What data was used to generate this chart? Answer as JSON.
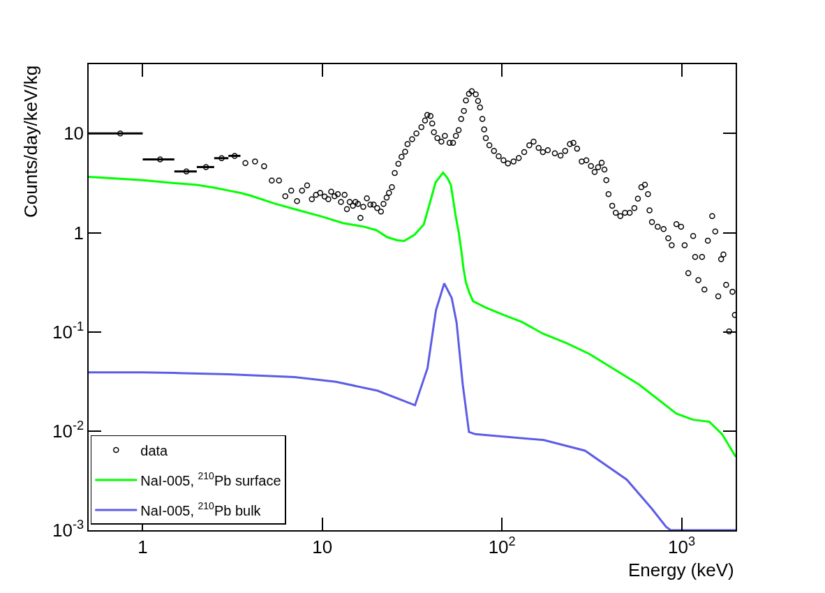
{
  "chart_data": {
    "type": "scatter",
    "xlabel": "Energy (keV)",
    "ylabel": "Counts/day/keV/kg",
    "log": "xy",
    "grid": false,
    "legend": "bottom left",
    "xlim": [
      0.5,
      2000
    ],
    "ylim": [
      0.001,
      50
    ],
    "xticks": [
      1,
      10,
      {
        "value": 100,
        "label": "10$^{2}$"
      },
      {
        "value": 1000,
        "label": "10$^{3}$"
      }
    ],
    "yticks": [
      {
        "value": 0.001,
        "label": "10$^{-3}$"
      },
      {
        "value": 0.01,
        "label": "10$^{-2}$"
      },
      {
        "value": 0.1,
        "label": "10$^{-1}$"
      },
      1,
      10
    ],
    "series": [
      {
        "name": "data",
        "marker": "circle",
        "color": "#000000",
        "x": [
          0.75,
          1.25,
          1.75,
          2.25,
          2.75,
          3.25,
          3.73,
          4.22,
          4.74,
          5.23,
          5.74,
          6.22,
          6.71,
          7.23,
          7.71,
          8.23,
          8.74,
          9.22,
          9.73,
          10.3,
          10.8,
          11.2,
          11.7,
          12.2,
          12.7,
          13.3,
          13.7,
          14.2,
          14.8,
          15.3,
          15.8,
          16.3,
          16.9,
          17.7,
          18.5,
          19.3,
          20.2,
          21.2,
          21.9,
          22.8,
          23.5,
          24.4,
          25.3,
          26.5,
          27.6,
          28.9,
          29.8,
          31.6,
          33.4,
          35.6,
          37.3,
          38.4,
          40.0,
          40.9,
          41.8,
          43.7,
          46.0,
          48.1,
          51.1,
          53.4,
          55.4,
          57.4,
          59.3,
          61.4,
          63.0,
          65.5,
          67.9,
          71.5,
          73.6,
          75.5,
          77.8,
          79.6,
          81.3,
          85.1,
          90.3,
          95.9,
          102,
          108,
          116,
          124,
          133,
          142,
          150,
          160,
          169,
          180,
          197,
          212,
          225,
          239,
          250,
          262,
          278,
          295,
          313,
          328,
          343,
          359,
          372,
          381,
          392,
          411,
          430,
          456,
          484,
          514,
          546,
          571,
          597,
          625,
          650,
          663,
          684,
          736,
          794,
          843,
          881,
          936,
          994,
          1040,
          1090,
          1160,
          1190,
          1240,
          1300,
          1340,
          1400,
          1480,
          1540,
          1600,
          1660,
          1710,
          1770,
          1840,
          1920,
          1980
        ],
        "values": [
          10,
          5.48,
          4.15,
          4.59,
          5.64,
          5.95,
          5.04,
          5.23,
          4.67,
          3.36,
          3.36,
          2.33,
          2.65,
          2.08,
          2.65,
          3.0,
          2.18,
          2.41,
          2.52,
          2.31,
          2.18,
          2.59,
          2.33,
          2.45,
          2.04,
          2.41,
          1.73,
          2.04,
          1.87,
          2.04,
          1.95,
          1.41,
          1.82,
          2.22,
          1.92,
          1.92,
          1.77,
          1.63,
          1.95,
          2.26,
          2.52,
          2.88,
          3.99,
          4.95,
          5.82,
          6.56,
          7.84,
          8.75,
          10,
          11.6,
          13.5,
          15.4,
          15.0,
          12.6,
          10.3,
          8.97,
          8.27,
          9.48,
          8.05,
          8.05,
          9.48,
          10.8,
          14.0,
          16.9,
          21.5,
          25.1,
          26.7,
          24.8,
          21.3,
          18.3,
          14.0,
          11.0,
          8.97,
          7.62,
          6.67,
          5.89,
          5.37,
          5.0,
          5.23,
          5.67,
          6.49,
          7.62,
          8.27,
          7.15,
          6.49,
          6.78,
          6.32,
          5.98,
          6.67,
          7.84,
          8.06,
          7.03,
          5.23,
          5.37,
          4.69,
          4.1,
          4.57,
          5.08,
          4.33,
          3.39,
          2.45,
          1.87,
          1.59,
          1.47,
          1.59,
          1.59,
          1.77,
          2.2,
          2.88,
          3.05,
          2.45,
          1.68,
          1.28,
          1.15,
          1.09,
          0.879,
          0.747,
          1.22,
          1.15,
          0.747,
          0.391,
          0.927,
          0.57,
          0.332,
          0.57,
          0.267,
          0.832,
          1.47,
          1.03,
          0.228,
          0.54,
          0.603,
          0.298,
          0.101,
          0.254,
          0.148
        ],
        "xerrors": [
          0.25,
          0.25,
          0.25,
          0.25,
          0.25,
          0.25,
          null,
          null,
          null,
          null,
          null,
          null,
          null,
          null,
          null,
          null,
          null,
          null,
          null,
          null,
          null,
          null,
          null,
          null,
          null,
          null,
          null,
          null,
          null,
          null,
          null,
          null,
          null,
          null,
          null,
          null,
          null,
          null,
          null,
          null,
          null,
          null,
          null,
          null,
          null,
          null,
          null,
          null,
          null,
          null,
          null,
          null,
          null,
          null,
          null,
          null,
          null,
          null,
          null,
          null,
          null,
          null,
          null,
          null,
          null,
          null,
          null,
          null,
          null,
          null,
          null,
          null,
          null,
          null,
          null,
          null,
          null,
          null,
          null,
          null,
          null,
          null,
          null,
          null,
          null,
          null,
          null,
          null,
          null,
          null,
          null,
          null,
          null,
          null,
          null,
          null,
          null,
          null,
          null,
          null,
          null,
          null,
          null,
          null,
          null,
          null,
          null,
          null,
          null,
          null,
          null,
          null,
          null,
          null,
          null,
          null,
          null,
          null,
          null,
          null,
          null,
          null,
          null,
          null,
          null,
          null,
          null,
          null,
          null,
          null,
          null,
          null,
          null,
          null,
          null,
          null
        ]
      },
      {
        "name": "NaI-005, $^{210}$Pb surface",
        "type": "line",
        "marker": "none",
        "color": "#00ff00",
        "x": [
          0.5,
          1.0,
          1.5,
          2.0,
          2.5,
          3.0,
          3.5,
          4.0,
          5.4,
          7.0,
          10,
          13,
          17,
          20,
          23,
          26,
          28.5,
          32.6,
          36.7,
          39.6,
          42.7,
          47.0,
          49.6,
          51.9,
          53.4,
          55.1,
          57.6,
          59.3,
          61.1,
          63.0,
          65.9,
          69.0,
          80.0,
          102,
          129,
          169,
          229,
          306,
          580,
          936,
          1160,
          1430,
          1680,
          1970,
          2000
        ],
        "values": [
          3.65,
          3.39,
          3.16,
          3.03,
          2.84,
          2.66,
          2.52,
          2.36,
          1.97,
          1.73,
          1.45,
          1.25,
          1.15,
          1.06,
          0.9,
          0.84,
          0.823,
          0.953,
          1.21,
          1.97,
          3.21,
          4.04,
          3.58,
          3.05,
          2.2,
          1.51,
          0.98,
          0.67,
          0.435,
          0.315,
          0.247,
          0.204,
          0.178,
          0.148,
          0.126,
          0.096,
          0.077,
          0.06,
          0.0294,
          0.015,
          0.013,
          0.0124,
          0.0093,
          0.00577,
          0.0055
        ]
      },
      {
        "name": "NaI-005, $^{210}$Pb bulk",
        "type": "line",
        "marker": "none",
        "color": "#5c5ce6",
        "x": [
          0.5,
          1.0,
          1.5,
          3.0,
          7.0,
          11.9,
          20.3,
          32.8,
          38.5,
          42.9,
          47.7,
          52.5,
          55.9,
          60.5,
          65.5,
          71.0,
          171,
          290,
          495,
          681,
          820,
          870,
          2000
        ],
        "values": [
          0.039,
          0.039,
          0.0385,
          0.0373,
          0.035,
          0.0314,
          0.0255,
          0.0182,
          0.0431,
          0.165,
          0.308,
          0.22,
          0.124,
          0.0294,
          0.0098,
          0.0093,
          0.0081,
          0.00634,
          0.00324,
          0.00166,
          0.00108,
          0.001,
          0.001
        ]
      }
    ]
  }
}
